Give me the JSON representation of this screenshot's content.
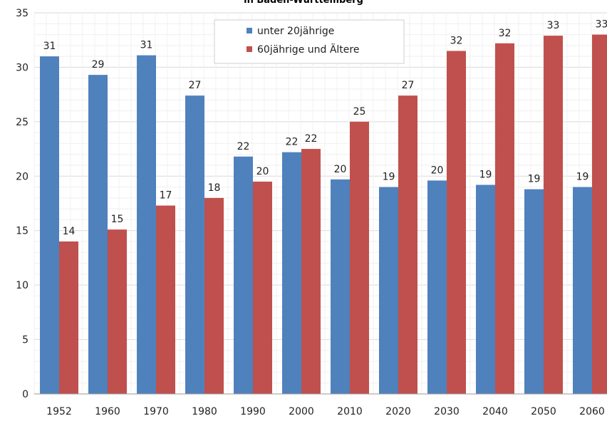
{
  "chart_data": {
    "type": "bar",
    "title": "in Baden-Württemberg",
    "categories": [
      "1952",
      "1960",
      "1970",
      "1980",
      "1990",
      "2000",
      "2010",
      "2020",
      "2030",
      "2040",
      "2050",
      "2060"
    ],
    "series": [
      {
        "name": "unter 20jährige",
        "color": "#4f81bd",
        "values": [
          31.0,
          29.3,
          31.1,
          27.4,
          21.8,
          22.2,
          19.7,
          19.0,
          19.6,
          19.2,
          18.8,
          19.0
        ],
        "labels": [
          "31",
          "29",
          "31",
          "27",
          "22",
          "22",
          "20",
          "19",
          "20",
          "19",
          "19",
          "19"
        ]
      },
      {
        "name": "60jährige und Ältere",
        "color": "#c0504d",
        "values": [
          14.0,
          15.1,
          17.3,
          18.0,
          19.5,
          22.5,
          25.0,
          27.4,
          31.5,
          32.2,
          32.9,
          33.0
        ],
        "labels": [
          "14",
          "15",
          "17",
          "18",
          "20",
          "22",
          "25",
          "27",
          "32",
          "32",
          "33",
          "33"
        ]
      }
    ],
    "ylim": [
      0,
      35
    ],
    "yticks": [
      0,
      5,
      10,
      15,
      20,
      25,
      30,
      35
    ],
    "grid": true,
    "legend": "top-center"
  }
}
